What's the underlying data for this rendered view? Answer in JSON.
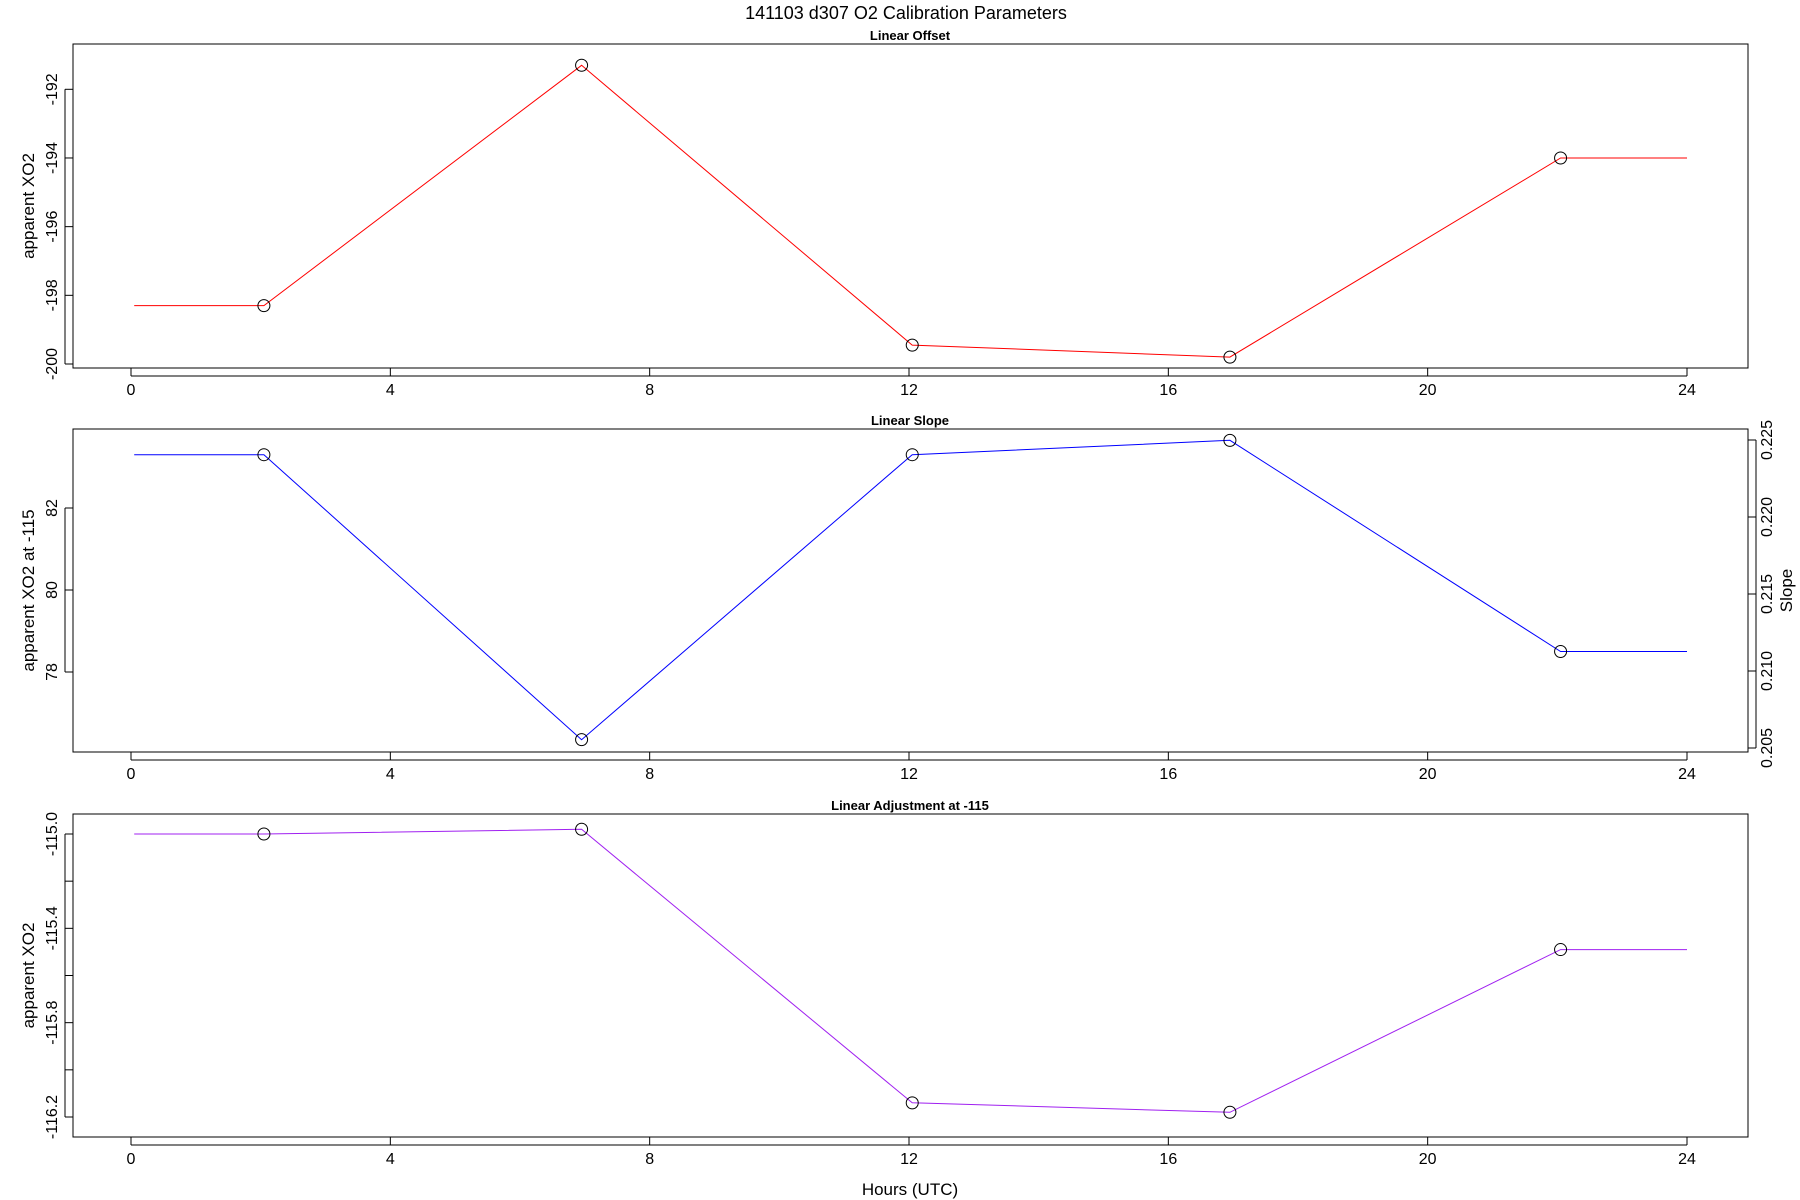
{
  "chart_data": {
    "title": "141103   d307   O2 Calibration Parameters",
    "xlabel": "Hours (UTC)",
    "panels": [
      {
        "type": "line",
        "title": "Linear Offset",
        "color": "#ff0000",
        "ylabel": "apparent XO2",
        "xlim": [
          0,
          24
        ],
        "xticks": [
          "0",
          "4",
          "8",
          "12",
          "16",
          "20",
          "24"
        ],
        "ylim": [
          -200,
          -191.7
        ],
        "yticks": [
          "-200",
          "-198",
          "-196",
          "-194",
          "-192"
        ],
        "points": [
          {
            "x": 2.05,
            "y": -198.3
          },
          {
            "x": 6.95,
            "y": -191.3
          },
          {
            "x": 12.05,
            "y": -199.45
          },
          {
            "x": 16.95,
            "y": -199.8
          },
          {
            "x": 22.05,
            "y": -194.0
          }
        ],
        "lead_in": {
          "x": 0.05,
          "y": -198.3
        },
        "tail_out": {
          "x": 24.0,
          "y": -194.0
        }
      },
      {
        "type": "line",
        "title": "Linear Slope",
        "color": "#0000ff",
        "ylabel": "apparent XO2 at -115",
        "ylabel_right": "Slope",
        "xlim": [
          0,
          24
        ],
        "xticks": [
          "0",
          "4",
          "8",
          "12",
          "16",
          "20",
          "24"
        ],
        "ylim": [
          76.8,
          83.5
        ],
        "yticks": [
          "78",
          "80",
          "82"
        ],
        "yticks_right": [
          "0.205",
          "0.210",
          "0.215",
          "0.220",
          "0.225"
        ],
        "right_ylim": [
          0.205,
          0.225
        ],
        "points": [
          {
            "x": 2.05,
            "y": 83.3
          },
          {
            "x": 6.95,
            "y": 76.35
          },
          {
            "x": 12.05,
            "y": 83.3
          },
          {
            "x": 16.95,
            "y": 83.65
          },
          {
            "x": 22.05,
            "y": 78.5
          }
        ],
        "lead_in": {
          "x": 0.05,
          "y": 83.3
        },
        "tail_out": {
          "x": 24.0,
          "y": 78.5
        }
      },
      {
        "type": "line",
        "title": "Linear Adjustment at -115",
        "color": "#a020f0",
        "ylabel": "apparent XO2",
        "xlim": [
          0,
          24
        ],
        "xticks": [
          "0",
          "4",
          "8",
          "12",
          "16",
          "20",
          "24"
        ],
        "ylim": [
          -116.2,
          -115.0
        ],
        "yticks": [
          "-116.2",
          "-115.8",
          "-115.4",
          "-115.0"
        ],
        "points": [
          {
            "x": 2.05,
            "y": -115.0
          },
          {
            "x": 6.95,
            "y": -114.98
          },
          {
            "x": 12.05,
            "y": -116.14
          },
          {
            "x": 16.95,
            "y": -116.18
          },
          {
            "x": 22.05,
            "y": -115.49
          }
        ],
        "lead_in": {
          "x": 0.05,
          "y": -115.0
        },
        "tail_out": {
          "x": 24.0,
          "y": -115.49
        }
      }
    ]
  }
}
